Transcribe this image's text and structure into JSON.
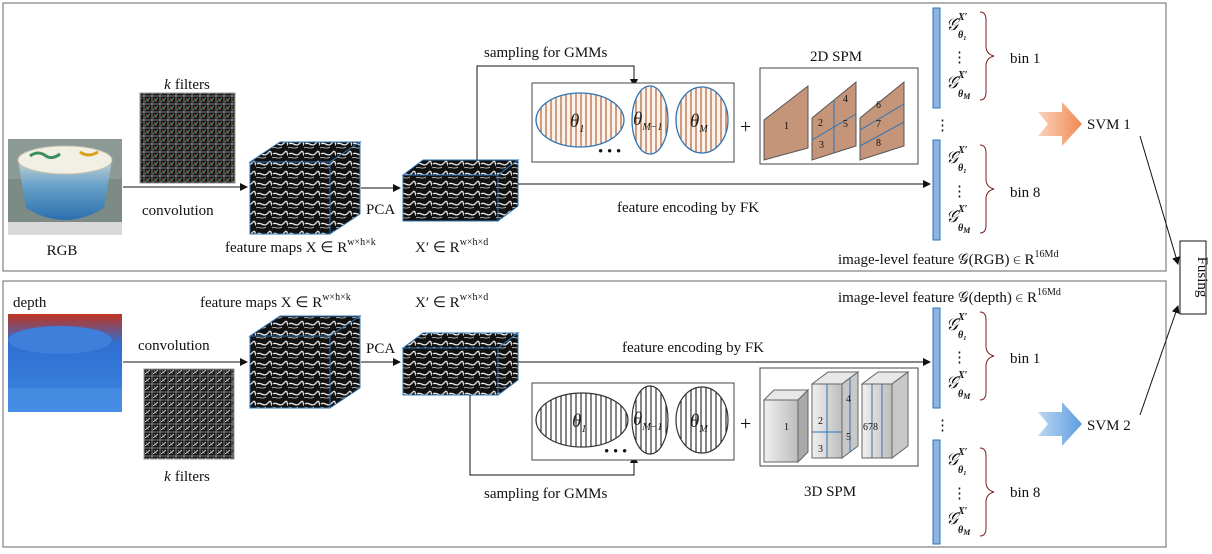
{
  "colors": {
    "rgb_accent": "#c98a5e",
    "svm1_arrow": "#f3a77e",
    "svm2_arrow": "#6fa6df",
    "vector_bar": "#8eb4e3",
    "cube_edge": "#2e75b6",
    "bracket": "#7a1e1e"
  },
  "top": {
    "input_label": "RGB",
    "filters_label_k": "k",
    "filters_label_rest": "filters",
    "convolution": "convolution",
    "pca": "PCA",
    "feature_maps": "feature maps X ∈ R",
    "feature_maps_sup": "w×h×k",
    "reduced": "X′ ∈ R",
    "reduced_sup": "w×h×d",
    "sampling": "sampling for GMMs",
    "theta_1": "θ",
    "theta_1_sub": "1",
    "theta_m1": "θ",
    "theta_m1_sub": "M−1",
    "theta_m": "θ",
    "theta_m_sub": "M",
    "dots": "• • •",
    "plus": "+",
    "spm_title": "2D SPM",
    "spm_cells": [
      "1",
      "2",
      "3",
      "4",
      "5",
      "6",
      "7",
      "8"
    ],
    "encoding": "feature encoding by FK",
    "image_feature": "image-level feature 𝒢(RGB) ∈ R",
    "image_feature_sup": "16Md",
    "bin_1": "bin 1",
    "bin_8": "bin 8",
    "svm": "SVM 1"
  },
  "bottom": {
    "input_label": "depth",
    "filters_label_k": "k",
    "filters_label_rest": "filters",
    "convolution": "convolution",
    "pca": "PCA",
    "feature_maps": "feature maps X ∈ R",
    "feature_maps_sup": "w×h×k",
    "reduced": "X′ ∈ R",
    "reduced_sup": "w×h×d",
    "sampling": "sampling for GMMs",
    "theta_1": "θ",
    "theta_1_sub": "1",
    "theta_m1": "θ",
    "theta_m1_sub": "M−1",
    "theta_m": "θ",
    "theta_m_sub": "M",
    "dots": "• • •",
    "plus": "+",
    "spm_title": "3D SPM",
    "spm_cells": [
      "1",
      "2",
      "3",
      "4",
      "5",
      "678"
    ],
    "encoding": "feature encoding by FK",
    "image_feature": "image-level feature 𝒢(depth) ∈ R",
    "image_feature_sup": "16Md",
    "bin_1": "bin 1",
    "bin_8": "bin 8",
    "svm": "SVM 2"
  },
  "gmm_symbol": {
    "g": "𝒢",
    "x": "X′",
    "theta_1": "θ₁",
    "theta_m": "θ",
    "theta_m_sub": "M"
  },
  "fusing": "Fusing",
  "vdots": "⋮"
}
